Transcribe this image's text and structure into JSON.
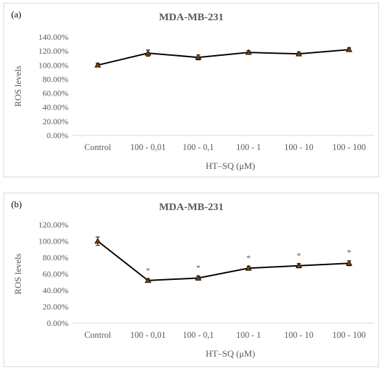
{
  "chart_data": [
    {
      "type": "line",
      "panel_label": "(a)",
      "title": "MDA-MB-231",
      "xlabel": "HT–SQ (μM)",
      "ylabel": "ROS levels",
      "categories": [
        "Control",
        "100 - 0,01",
        "100 - 0,1",
        "100 - 1",
        "100 - 10",
        "100 - 100"
      ],
      "values": [
        100,
        117,
        111,
        118,
        116,
        122
      ],
      "errors": [
        2.5,
        4.5,
        3.5,
        2.5,
        2.5,
        2.5
      ],
      "significance": [
        "",
        "",
        "",
        "",
        "",
        ""
      ],
      "ylim": [
        0,
        140
      ],
      "yticks": [
        "0.00%",
        "20.00%",
        "40.00%",
        "60.00%",
        "80.00%",
        "100.00%",
        "120.00%",
        "140.00%"
      ],
      "grid": false,
      "marker": "triangle",
      "color": "#000000",
      "marker_color": "#7f3f00"
    },
    {
      "type": "line",
      "panel_label": "(b)",
      "title": "MDA-MB-231",
      "xlabel": "HT–SQ (μM)",
      "ylabel": "ROS levels",
      "categories": [
        "Control",
        "100 - 0,01",
        "100 - 0,1",
        "100 - 1",
        "100 - 10",
        "100 - 100"
      ],
      "values": [
        100,
        52,
        55,
        67,
        70,
        73
      ],
      "errors": [
        5,
        2,
        2.5,
        2.5,
        2.5,
        3
      ],
      "significance": [
        "",
        "*",
        "*",
        "*",
        "*",
        "*"
      ],
      "ylim": [
        0,
        120
      ],
      "yticks": [
        "0.00%",
        "20.00%",
        "40.00%",
        "60.00%",
        "80.00%",
        "100.00%",
        "120.00%"
      ],
      "grid": false,
      "marker": "triangle",
      "color": "#000000",
      "marker_color": "#7f3f00"
    }
  ]
}
